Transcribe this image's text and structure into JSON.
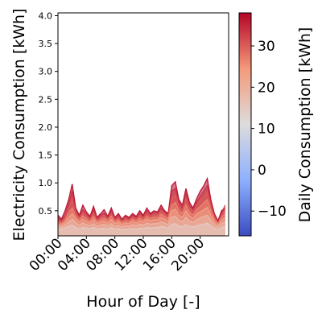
{
  "chart_data": {
    "type": "line",
    "xlabel": "Hour of Day [-]",
    "ylabel": "Electricity Consumption [kWh]",
    "x_tick_labels": [
      "00:00",
      "04:00",
      "08:00",
      "12:00",
      "16:00",
      "20:00"
    ],
    "x_ticks": [
      0,
      4,
      8,
      12,
      16,
      20
    ],
    "xlim": [
      0,
      24
    ],
    "y_tick_labels": [
      "0.5",
      "1.0",
      "1.5",
      "2.0",
      "2.5",
      "3.0",
      "3.5",
      "4.0"
    ],
    "y_ticks": [
      0.5,
      1.0,
      1.5,
      2.0,
      2.5,
      3.0,
      3.5,
      4.0
    ],
    "ylim": [
      0.05,
      4.05
    ],
    "grid": false,
    "colorbar": {
      "label": "Daily Consumption [kWh]",
      "colormap": "coolwarm",
      "range": [
        -16,
        38
      ],
      "tick_values": [
        -10,
        0,
        10,
        20,
        30
      ],
      "tick_labels": [
        "−10",
        "0",
        "10",
        "20",
        "30"
      ]
    },
    "x": [
      0,
      0.5,
      1,
      1.5,
      2,
      2.5,
      3,
      3.5,
      4,
      4.5,
      5,
      5.5,
      6,
      6.5,
      7,
      7.5,
      8,
      8.5,
      9,
      9.5,
      10,
      10.5,
      11,
      11.5,
      12,
      12.5,
      13,
      13.5,
      14,
      14.5,
      15,
      15.5,
      16,
      16.5,
      17,
      17.5,
      18,
      18.5,
      19,
      19.5,
      20,
      20.5,
      21,
      21.5,
      22,
      22.5,
      23,
      23.5
    ],
    "series": [
      {
        "daily": 38,
        "values": [
          0.42,
          0.35,
          0.5,
          0.7,
          0.98,
          0.55,
          0.42,
          0.6,
          0.48,
          0.4,
          0.58,
          0.38,
          0.45,
          0.52,
          0.4,
          0.55,
          0.38,
          0.45,
          0.35,
          0.42,
          0.38,
          0.45,
          0.4,
          0.5,
          0.42,
          0.55,
          0.45,
          0.5,
          0.48,
          0.6,
          0.5,
          0.45,
          0.95,
          1.02,
          0.7,
          0.6,
          0.9,
          0.65,
          0.55,
          0.72,
          0.85,
          0.95,
          1.08,
          0.7,
          0.45,
          0.32,
          0.5,
          0.55
        ]
      },
      {
        "daily": 34,
        "values": [
          0.38,
          0.32,
          0.42,
          0.62,
          0.85,
          0.5,
          0.4,
          0.52,
          0.44,
          0.38,
          0.52,
          0.35,
          0.42,
          0.46,
          0.38,
          0.5,
          0.36,
          0.42,
          0.33,
          0.4,
          0.36,
          0.42,
          0.38,
          0.46,
          0.4,
          0.5,
          0.43,
          0.47,
          0.46,
          0.55,
          0.48,
          0.42,
          0.85,
          0.9,
          0.65,
          0.55,
          0.82,
          0.6,
          0.52,
          0.66,
          0.76,
          0.85,
          0.95,
          0.64,
          0.42,
          0.3,
          0.45,
          0.6
        ]
      },
      {
        "daily": 30,
        "values": [
          0.34,
          0.3,
          0.38,
          0.55,
          0.7,
          0.46,
          0.37,
          0.47,
          0.4,
          0.35,
          0.46,
          0.33,
          0.38,
          0.42,
          0.35,
          0.45,
          0.33,
          0.38,
          0.31,
          0.36,
          0.33,
          0.39,
          0.35,
          0.42,
          0.37,
          0.45,
          0.4,
          0.43,
          0.42,
          0.5,
          0.44,
          0.39,
          0.72,
          0.78,
          0.58,
          0.5,
          0.72,
          0.55,
          0.48,
          0.6,
          0.68,
          0.75,
          0.84,
          0.58,
          0.39,
          0.28,
          0.42,
          0.52
        ]
      },
      {
        "daily": 26,
        "values": [
          0.3,
          0.27,
          0.33,
          0.46,
          0.55,
          0.4,
          0.33,
          0.41,
          0.36,
          0.31,
          0.4,
          0.3,
          0.34,
          0.37,
          0.32,
          0.4,
          0.3,
          0.34,
          0.28,
          0.32,
          0.3,
          0.35,
          0.32,
          0.37,
          0.33,
          0.4,
          0.36,
          0.39,
          0.38,
          0.44,
          0.4,
          0.35,
          0.6,
          0.65,
          0.5,
          0.45,
          0.6,
          0.48,
          0.42,
          0.52,
          0.58,
          0.64,
          0.7,
          0.5,
          0.35,
          0.26,
          0.38,
          0.45
        ]
      },
      {
        "daily": 22,
        "values": [
          0.26,
          0.24,
          0.29,
          0.38,
          0.45,
          0.35,
          0.29,
          0.35,
          0.31,
          0.28,
          0.34,
          0.27,
          0.3,
          0.32,
          0.28,
          0.34,
          0.27,
          0.3,
          0.25,
          0.28,
          0.27,
          0.31,
          0.28,
          0.32,
          0.3,
          0.35,
          0.32,
          0.34,
          0.34,
          0.38,
          0.35,
          0.31,
          0.5,
          0.53,
          0.42,
          0.38,
          0.5,
          0.41,
          0.36,
          0.44,
          0.48,
          0.52,
          0.56,
          0.42,
          0.3,
          0.23,
          0.33,
          0.38
        ]
      },
      {
        "daily": 18,
        "values": [
          0.22,
          0.21,
          0.24,
          0.3,
          0.35,
          0.28,
          0.24,
          0.28,
          0.25,
          0.23,
          0.27,
          0.22,
          0.24,
          0.26,
          0.23,
          0.27,
          0.22,
          0.24,
          0.21,
          0.23,
          0.22,
          0.25,
          0.23,
          0.26,
          0.24,
          0.28,
          0.26,
          0.27,
          0.27,
          0.3,
          0.28,
          0.25,
          0.38,
          0.4,
          0.33,
          0.3,
          0.38,
          0.32,
          0.29,
          0.34,
          0.37,
          0.4,
          0.42,
          0.33,
          0.25,
          0.2,
          0.27,
          0.3
        ]
      },
      {
        "daily": 14,
        "values": [
          0.18,
          0.17,
          0.19,
          0.22,
          0.24,
          0.2,
          0.18,
          0.2,
          0.19,
          0.18,
          0.2,
          0.17,
          0.18,
          0.19,
          0.17,
          0.2,
          0.17,
          0.18,
          0.16,
          0.17,
          0.17,
          0.18,
          0.17,
          0.19,
          0.18,
          0.2,
          0.19,
          0.2,
          0.2,
          0.22,
          0.21,
          0.19,
          0.26,
          0.27,
          0.23,
          0.21,
          0.25,
          0.22,
          0.21,
          0.23,
          0.25,
          0.26,
          0.28,
          0.23,
          0.19,
          0.16,
          0.2,
          0.22
        ]
      }
    ]
  }
}
